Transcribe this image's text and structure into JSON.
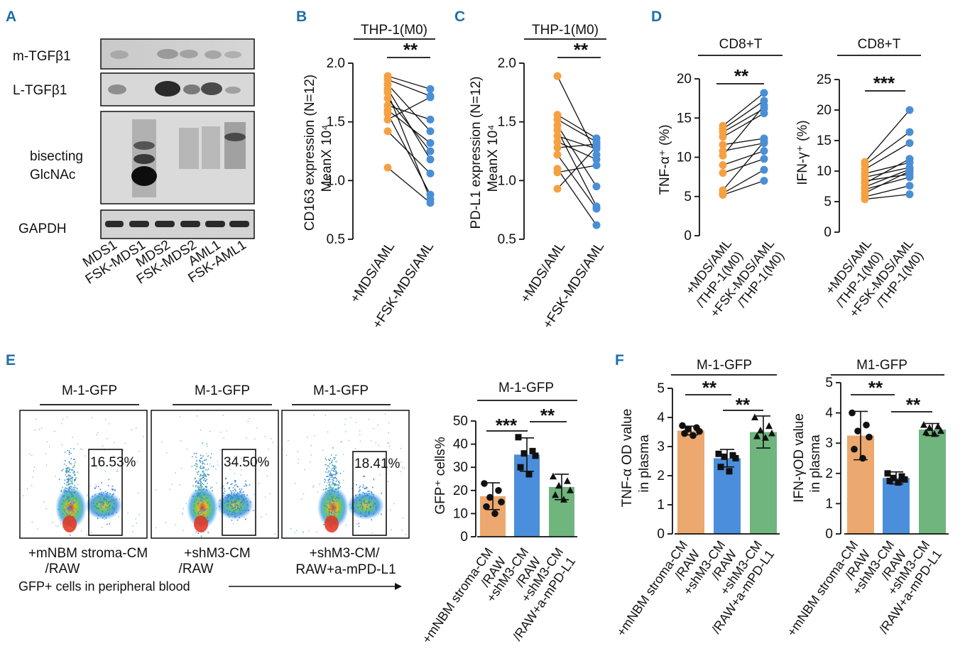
{
  "colors": {
    "orange": "#f5a142",
    "blue": "#4a8fd6",
    "green": "#6cba78",
    "bar_orange": "#eca86e",
    "bar_blue": "#4b8fdc",
    "bar_green": "#6fb57d",
    "panel_label": "#1d6fa8"
  },
  "panel_labels": {
    "A": "A",
    "B": "B",
    "C": "C",
    "D": "D",
    "E": "E",
    "F": "F"
  },
  "panel_a": {
    "blot_rows": [
      "m-TGFβ1",
      "L-TGFβ1",
      "bisecting",
      "GlcNAc",
      "GAPDH"
    ],
    "lanes": [
      "MDS1",
      "FSK-MDS1",
      "MDS2",
      "FSK-MDS2",
      "AML1",
      "FSK-AML1"
    ]
  },
  "panel_b": {
    "title": "THP-1(M0)",
    "sig": "**",
    "ylabel1": "CD163 expression (N=12)",
    "ylabel2": "MeanX 10⁴",
    "xticks": [
      "+MDS/AML",
      "+FSK-MDS/AML"
    ],
    "yticks": [
      "0.5",
      "1.0",
      "1.5",
      "2.0"
    ]
  },
  "panel_c": {
    "title": "THP-1(M0)",
    "sig": "**",
    "ylabel1": "PD-L1 expression (N=12)",
    "ylabel2": "MeanX 10⁴",
    "xticks": [
      "+MDS/AML",
      "+FSK-MDS/AML"
    ],
    "yticks": [
      "0.5",
      "1.0",
      "1.5",
      "2.0"
    ]
  },
  "panel_d": {
    "left": {
      "title": "CD8+T",
      "sig": "**",
      "ylabel": "TNF-α⁺ (%)",
      "yticks": [
        "0",
        "5",
        "10",
        "15",
        "20"
      ],
      "xticks": [
        [
          "+MDS/AML",
          "/THP-1(M0)"
        ],
        [
          "+FSK-MDS/AML",
          "/THP-1(M0)"
        ]
      ]
    },
    "right": {
      "title": "CD8+T",
      "sig": "***",
      "ylabel": "IFN-γ⁺ (%)",
      "yticks": [
        "0",
        "5",
        "10",
        "15",
        "20",
        "25"
      ],
      "xticks": [
        [
          "+MDS/AML",
          "/THP-1(M0)"
        ],
        [
          "+FSK-MDS/AML",
          "/THP-1(M0)"
        ]
      ]
    }
  },
  "panel_e": {
    "flow": [
      {
        "title": "M-1-GFP",
        "gate": "16.53%",
        "label1": "+mNBM stroma-CM",
        "label2": "/RAW"
      },
      {
        "title": "M-1-GFP",
        "gate": "34.50%",
        "label1": "+shM3-CM",
        "label2": "/RAW"
      },
      {
        "title": "M-1-GFP",
        "gate": "18.41%",
        "label1": "+shM3-CM/",
        "label2": "RAW+a-mPD-L1"
      }
    ],
    "footnote": "GFP+  cells  in  peripheral  blood",
    "bar": {
      "title": "M-1-GFP",
      "ylabel": "GFP⁺ cells%",
      "sig1": "***",
      "sig2": "**",
      "yticks": [
        "0",
        "10",
        "20",
        "30",
        "40",
        "50"
      ],
      "xticks": [
        [
          "+mNBM stroma-CM",
          "/RAW"
        ],
        [
          "+shM3-CM",
          "/RAW"
        ],
        [
          "+shM3-CM",
          "/RAW+a-mPD-L1"
        ]
      ]
    }
  },
  "panel_f": {
    "left": {
      "title": "M-1-GFP",
      "ylabel1": "TNF-α OD value",
      "ylabel2": "in plasma",
      "sig1": "**",
      "sig2": "**",
      "yticks": [
        "0",
        "1",
        "2",
        "3",
        "4",
        "5"
      ],
      "xticks": [
        [
          "+mNBM stroma-CM",
          "/RAW"
        ],
        [
          "+shM3-CM",
          "/RAW"
        ],
        [
          "+shM3-CM",
          "/RAW+a-mPD-L1"
        ]
      ]
    },
    "right": {
      "title": "M1-GFP",
      "ylabel1": "IFN-γOD value",
      "ylabel2": "in plasma",
      "sig1": "**",
      "sig2": "**",
      "yticks": [
        "0",
        "1",
        "2",
        "3",
        "4",
        "5"
      ],
      "xticks": [
        [
          "+mNBM stroma-CM",
          "/RAW"
        ],
        [
          "+shM3-CM",
          "/RAW"
        ],
        [
          "+shM3-CM",
          "/RAW+a-mPD-L1"
        ]
      ]
    }
  },
  "chart_data": [
    {
      "type": "scatter",
      "panel": "B",
      "title": "THP-1(M0)",
      "ylabel": "CD163 expression (N=12) MeanX 10⁴",
      "ylim": [
        0.5,
        2.0
      ],
      "categories": [
        "+MDS/AML",
        "+FSK-MDS/AML"
      ],
      "pairs": [
        [
          1.89,
          1.78
        ],
        [
          1.86,
          1.72
        ],
        [
          1.82,
          1.42
        ],
        [
          1.78,
          1.18
        ],
        [
          1.75,
          0.84
        ],
        [
          1.7,
          1.25
        ],
        [
          1.64,
          1.52
        ],
        [
          1.6,
          1.32
        ],
        [
          1.57,
          0.88
        ],
        [
          1.52,
          1.71
        ],
        [
          1.42,
          1.06
        ],
        [
          1.11,
          0.81
        ]
      ]
    },
    {
      "type": "scatter",
      "panel": "C",
      "title": "THP-1(M0)",
      "ylabel": "PD-L1 expression (N=12) MeanX 10⁴",
      "ylim": [
        0.5,
        2.0
      ],
      "categories": [
        "+MDS/AML",
        "+FSK-MDS/AML"
      ],
      "pairs": [
        [
          1.89,
          1.22
        ],
        [
          1.56,
          1.36
        ],
        [
          1.52,
          1.33
        ],
        [
          1.47,
          0.95
        ],
        [
          1.43,
          0.78
        ],
        [
          1.38,
          1.27
        ],
        [
          1.33,
          1.18
        ],
        [
          1.28,
          1.31
        ],
        [
          1.22,
          0.76
        ],
        [
          1.1,
          0.62
        ],
        [
          1.07,
          1.13
        ],
        [
          0.93,
          1.29
        ]
      ]
    },
    {
      "type": "scatter",
      "panel": "D-left",
      "title": "CD8+T",
      "ylabel": "TNF-α⁺ (%)",
      "ylim": [
        0,
        20
      ],
      "categories": [
        "+MDS/AML/THP-1(M0)",
        "+FSK-MDS/AML/THP-1(M0)"
      ],
      "pairs": [
        [
          14.0,
          18.2
        ],
        [
          13.6,
          17.2
        ],
        [
          13.2,
          16.2
        ],
        [
          12.6,
          15.6
        ],
        [
          11.6,
          12.4
        ],
        [
          10.8,
          11.8
        ],
        [
          10.2,
          16.6
        ],
        [
          9.0,
          10.8
        ],
        [
          8.0,
          9.8
        ],
        [
          5.8,
          12.0
        ],
        [
          5.4,
          8.4
        ],
        [
          5.2,
          7.0
        ]
      ]
    },
    {
      "type": "scatter",
      "panel": "D-right",
      "title": "CD8+T",
      "ylabel": "IFN-γ⁺ (%)",
      "ylim": [
        0,
        25
      ],
      "categories": [
        "+MDS/AML/THP-1(M0)",
        "+FSK-MDS/AML/THP-1(M0)"
      ],
      "pairs": [
        [
          11.5,
          20.0
        ],
        [
          11.0,
          16.4
        ],
        [
          10.3,
          14.6
        ],
        [
          9.6,
          11.4
        ],
        [
          9.0,
          10.6
        ],
        [
          8.4,
          9.5
        ],
        [
          8.0,
          12.0
        ],
        [
          7.4,
          10.3
        ],
        [
          7.0,
          9.0
        ],
        [
          6.4,
          10.0
        ],
        [
          5.8,
          7.6
        ],
        [
          5.4,
          6.2
        ]
      ]
    },
    {
      "type": "bar",
      "panel": "E",
      "title": "M-1-GFP",
      "ylabel": "GFP⁺ cells%",
      "ylim": [
        0,
        50
      ],
      "categories": [
        "+mNBM stroma-CM/RAW",
        "+shM3-CM/RAW",
        "+shM3-CM/RAW+a-mPD-L1"
      ],
      "values": [
        17.5,
        35.5,
        21.5
      ],
      "errors": [
        5.8,
        7.2,
        5.5
      ],
      "points": [
        [
          23,
          20,
          17,
          15,
          13,
          10
        ],
        [
          43,
          37,
          36,
          35,
          30,
          27
        ],
        [
          26,
          24,
          22,
          20,
          18,
          16
        ]
      ]
    },
    {
      "type": "bar",
      "panel": "F-left",
      "title": "M-1-GFP",
      "ylabel": "TNF-α OD value in plasma",
      "ylim": [
        0,
        5
      ],
      "categories": [
        "+mNBM stroma-CM/RAW",
        "+shM3-CM/RAW",
        "+shM3-CM/RAW+a-mPD-L1"
      ],
      "values": [
        3.55,
        2.6,
        3.5
      ],
      "errors": [
        0.15,
        0.3,
        0.55
      ],
      "points": [
        [
          3.72,
          3.65,
          3.6,
          3.52,
          3.45,
          3.38
        ],
        [
          2.75,
          2.7,
          2.65,
          2.6,
          2.3,
          2.15
        ],
        [
          4.0,
          3.7,
          3.55,
          3.45,
          3.35,
          3.3
        ]
      ]
    },
    {
      "type": "bar",
      "panel": "F-right",
      "title": "M1-GFP",
      "ylabel": "IFN-γOD value in plasma",
      "ylim": [
        0,
        5
      ],
      "categories": [
        "+mNBM stroma-CM/RAW",
        "+shM3-CM/RAW",
        "+shM3-CM/RAW+a-mPD-L1"
      ],
      "values": [
        3.25,
        1.85,
        3.45
      ],
      "errors": [
        0.8,
        0.2,
        0.2
      ],
      "points": [
        [
          4.0,
          3.6,
          3.4,
          3.2,
          2.8,
          2.5
        ],
        [
          2.0,
          1.9,
          1.85,
          1.8,
          1.75,
          1.7
        ],
        [
          3.6,
          3.55,
          3.5,
          3.4,
          3.35,
          3.3
        ]
      ]
    }
  ]
}
